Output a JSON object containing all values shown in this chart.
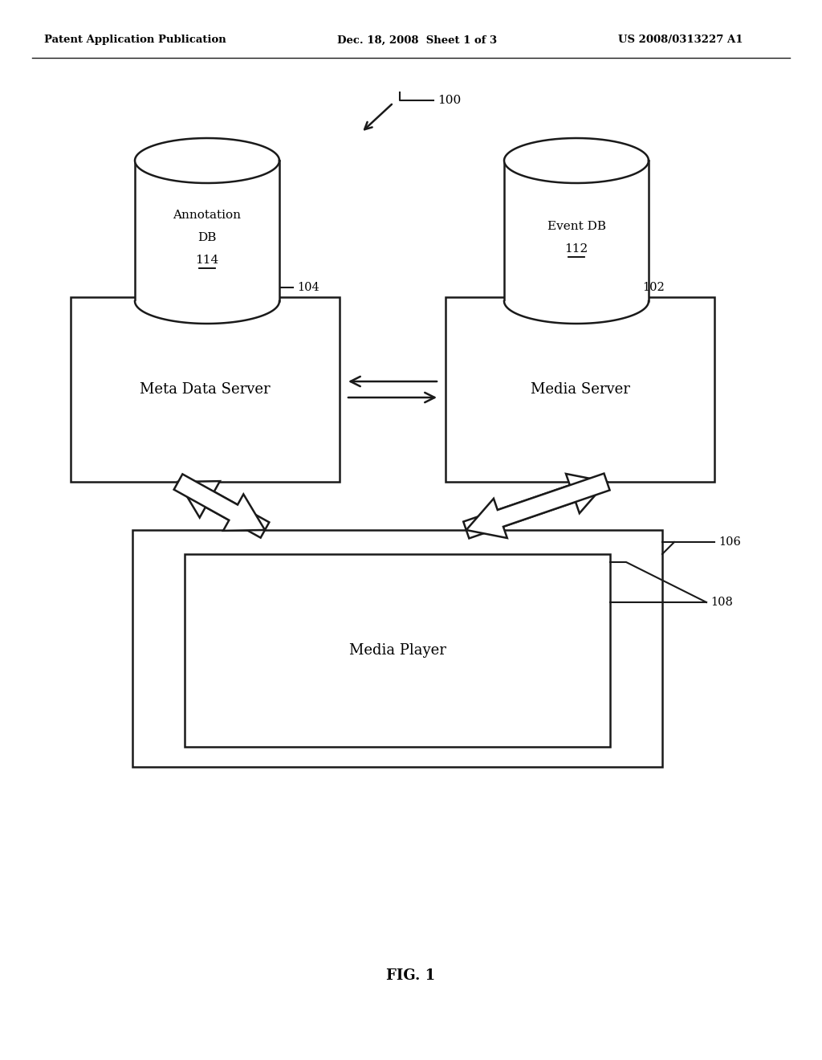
{
  "bg_color": "#ffffff",
  "header_left": "Patent Application Publication",
  "header_center": "Dec. 18, 2008  Sheet 1 of 3",
  "header_right": "US 2008/0313227 A1",
  "fig_label": "FIG. 1",
  "ref_100": "100",
  "ref_102": "102",
  "ref_104": "104",
  "ref_106": "106",
  "ref_108": "108",
  "ref_112": "112",
  "ref_114": "114",
  "annotation_db_label": [
    "Annotation",
    "DB",
    "114"
  ],
  "event_db_label": [
    "Event DB",
    "112"
  ],
  "meta_data_server": "Meta Data Server",
  "media_server": "Media Server",
  "media_player": "Media Player",
  "line_color": "#1a1a1a",
  "text_color": "#000000"
}
